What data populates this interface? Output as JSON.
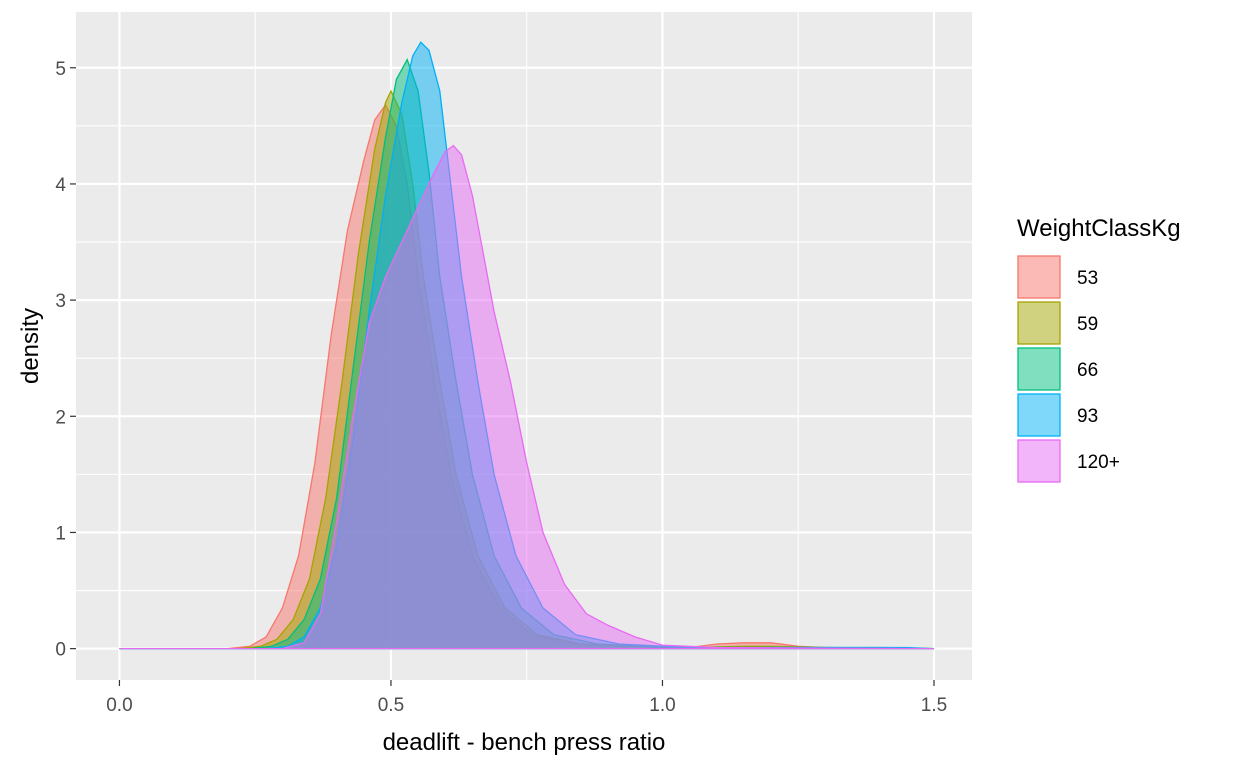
{
  "chart_data": {
    "type": "area",
    "title": "",
    "xlabel": "deadlift - bench press ratio",
    "ylabel": "density",
    "xlim": [
      -0.08,
      1.57
    ],
    "ylim": [
      -0.27,
      5.48
    ],
    "x_ticks": [
      0.0,
      0.5,
      1.0,
      1.5
    ],
    "x_tick_labels": [
      "0.0",
      "0.5",
      "1.0",
      "1.5"
    ],
    "y_ticks": [
      0,
      1,
      2,
      3,
      4,
      5
    ],
    "y_tick_labels": [
      "0",
      "1",
      "2",
      "3",
      "4",
      "5"
    ],
    "grid": true,
    "legend": {
      "title": "WeightClassKg",
      "position": "right"
    },
    "background": "#ebebeb",
    "fill_opacity": 0.5,
    "series": [
      {
        "name": "53",
        "color": "#F8766D",
        "points": [
          [
            0.0,
            0
          ],
          [
            0.2,
            0
          ],
          [
            0.24,
            0.02
          ],
          [
            0.27,
            0.1
          ],
          [
            0.3,
            0.35
          ],
          [
            0.33,
            0.8
          ],
          [
            0.36,
            1.6
          ],
          [
            0.39,
            2.7
          ],
          [
            0.42,
            3.6
          ],
          [
            0.45,
            4.2
          ],
          [
            0.47,
            4.55
          ],
          [
            0.49,
            4.68
          ],
          [
            0.51,
            4.5
          ],
          [
            0.53,
            4.0
          ],
          [
            0.55,
            3.2
          ],
          [
            0.58,
            2.3
          ],
          [
            0.61,
            1.5
          ],
          [
            0.65,
            0.8
          ],
          [
            0.7,
            0.35
          ],
          [
            0.76,
            0.12
          ],
          [
            0.84,
            0.04
          ],
          [
            0.95,
            0.02
          ],
          [
            1.05,
            0.01
          ],
          [
            1.1,
            0.04
          ],
          [
            1.15,
            0.05
          ],
          [
            1.2,
            0.05
          ],
          [
            1.25,
            0.02
          ],
          [
            1.3,
            0.01
          ],
          [
            1.5,
            0
          ]
        ]
      },
      {
        "name": "59",
        "color": "#A3A500",
        "points": [
          [
            0.0,
            0
          ],
          [
            0.22,
            0
          ],
          [
            0.26,
            0.02
          ],
          [
            0.29,
            0.08
          ],
          [
            0.32,
            0.25
          ],
          [
            0.35,
            0.6
          ],
          [
            0.38,
            1.3
          ],
          [
            0.41,
            2.3
          ],
          [
            0.44,
            3.4
          ],
          [
            0.47,
            4.3
          ],
          [
            0.49,
            4.7
          ],
          [
            0.5,
            4.8
          ],
          [
            0.52,
            4.6
          ],
          [
            0.54,
            4.0
          ],
          [
            0.56,
            3.2
          ],
          [
            0.59,
            2.3
          ],
          [
            0.62,
            1.5
          ],
          [
            0.66,
            0.8
          ],
          [
            0.71,
            0.35
          ],
          [
            0.77,
            0.12
          ],
          [
            0.85,
            0.04
          ],
          [
            0.95,
            0.02
          ],
          [
            1.05,
            0.01
          ],
          [
            1.15,
            0.02
          ],
          [
            1.2,
            0.02
          ],
          [
            1.3,
            0.01
          ],
          [
            1.5,
            0
          ]
        ]
      },
      {
        "name": "66",
        "color": "#00BF7D",
        "points": [
          [
            0.0,
            0
          ],
          [
            0.24,
            0
          ],
          [
            0.28,
            0.02
          ],
          [
            0.31,
            0.08
          ],
          [
            0.34,
            0.25
          ],
          [
            0.37,
            0.6
          ],
          [
            0.4,
            1.3
          ],
          [
            0.43,
            2.4
          ],
          [
            0.46,
            3.5
          ],
          [
            0.49,
            4.4
          ],
          [
            0.51,
            4.9
          ],
          [
            0.53,
            5.07
          ],
          [
            0.55,
            4.8
          ],
          [
            0.57,
            4.1
          ],
          [
            0.59,
            3.2
          ],
          [
            0.62,
            2.3
          ],
          [
            0.65,
            1.5
          ],
          [
            0.69,
            0.8
          ],
          [
            0.74,
            0.35
          ],
          [
            0.8,
            0.12
          ],
          [
            0.88,
            0.04
          ],
          [
            1.0,
            0.01
          ],
          [
            1.2,
            0.01
          ],
          [
            1.4,
            0.01
          ],
          [
            1.5,
            0
          ]
        ]
      },
      {
        "name": "93",
        "color": "#00B0F6",
        "points": [
          [
            0.0,
            0
          ],
          [
            0.27,
            0
          ],
          [
            0.31,
            0.02
          ],
          [
            0.34,
            0.1
          ],
          [
            0.37,
            0.35
          ],
          [
            0.4,
            0.9
          ],
          [
            0.43,
            1.8
          ],
          [
            0.46,
            2.9
          ],
          [
            0.49,
            3.9
          ],
          [
            0.52,
            4.7
          ],
          [
            0.54,
            5.1
          ],
          [
            0.555,
            5.22
          ],
          [
            0.57,
            5.15
          ],
          [
            0.59,
            4.8
          ],
          [
            0.61,
            4.0
          ],
          [
            0.63,
            3.2
          ],
          [
            0.66,
            2.3
          ],
          [
            0.69,
            1.5
          ],
          [
            0.73,
            0.8
          ],
          [
            0.78,
            0.35
          ],
          [
            0.84,
            0.12
          ],
          [
            0.92,
            0.04
          ],
          [
            1.05,
            0.01
          ],
          [
            1.25,
            0.01
          ],
          [
            1.45,
            0.01
          ],
          [
            1.5,
            0
          ]
        ]
      },
      {
        "name": "120+",
        "color": "#E76BF3",
        "points": [
          [
            0.0,
            0
          ],
          [
            0.3,
            0
          ],
          [
            0.34,
            0.05
          ],
          [
            0.37,
            0.3
          ],
          [
            0.4,
            1.1
          ],
          [
            0.43,
            2.0
          ],
          [
            0.46,
            2.8
          ],
          [
            0.49,
            3.2
          ],
          [
            0.52,
            3.5
          ],
          [
            0.55,
            3.8
          ],
          [
            0.58,
            4.1
          ],
          [
            0.6,
            4.28
          ],
          [
            0.615,
            4.33
          ],
          [
            0.63,
            4.25
          ],
          [
            0.65,
            3.9
          ],
          [
            0.67,
            3.4
          ],
          [
            0.69,
            2.9
          ],
          [
            0.72,
            2.3
          ],
          [
            0.75,
            1.6
          ],
          [
            0.78,
            1.0
          ],
          [
            0.82,
            0.55
          ],
          [
            0.86,
            0.3
          ],
          [
            0.9,
            0.2
          ],
          [
            0.95,
            0.1
          ],
          [
            1.0,
            0.03
          ],
          [
            1.1,
            0.01
          ],
          [
            1.3,
            0.005
          ],
          [
            1.5,
            0
          ]
        ]
      }
    ]
  }
}
